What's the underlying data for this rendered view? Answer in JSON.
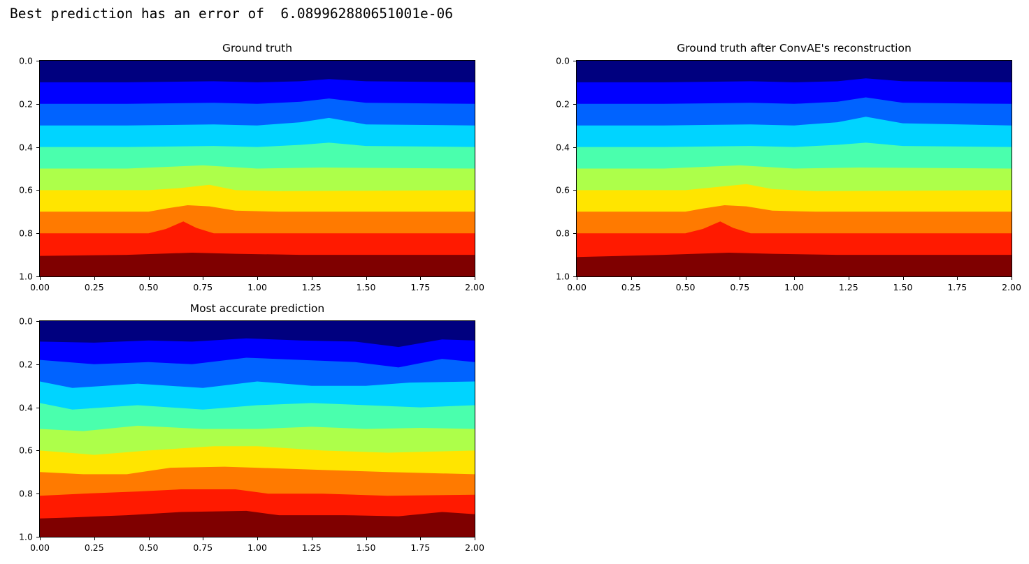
{
  "output_text": "Best prediction has an error of  6.089962880651001e-06",
  "colormap": [
    "#00007f",
    "#0000ff",
    "#0063ff",
    "#00d4ff",
    "#4affad",
    "#adff4a",
    "#ffe500",
    "#ff7a00",
    "#ff1a00",
    "#7f0000"
  ],
  "chart_data": [
    {
      "type": "heatmap",
      "title": "Ground truth",
      "xlim": [
        0,
        2
      ],
      "ylim": [
        0,
        1
      ],
      "xticks": [
        "0.00",
        "0.25",
        "0.50",
        "0.75",
        "1.00",
        "1.25",
        "1.50",
        "1.75",
        "2.00"
      ],
      "yticks": [
        "0.0",
        "0.2",
        "0.4",
        "0.6",
        "0.8",
        "1.0"
      ],
      "boundaries": [
        {
          "x": [
            0,
            0.4,
            0.8,
            1.0,
            1.2,
            1.33,
            1.5,
            2.0
          ],
          "y": [
            0.1,
            0.1,
            0.095,
            0.1,
            0.095,
            0.085,
            0.095,
            0.1
          ]
        },
        {
          "x": [
            0,
            0.4,
            0.8,
            1.0,
            1.2,
            1.33,
            1.5,
            2.0
          ],
          "y": [
            0.2,
            0.2,
            0.195,
            0.2,
            0.19,
            0.175,
            0.195,
            0.2
          ]
        },
        {
          "x": [
            0,
            0.4,
            0.8,
            1.0,
            1.2,
            1.33,
            1.5,
            2.0
          ],
          "y": [
            0.3,
            0.3,
            0.295,
            0.3,
            0.285,
            0.265,
            0.295,
            0.3
          ]
        },
        {
          "x": [
            0,
            0.4,
            0.8,
            1.0,
            1.2,
            1.33,
            1.5,
            2.0
          ],
          "y": [
            0.4,
            0.4,
            0.395,
            0.4,
            0.39,
            0.38,
            0.395,
            0.4
          ]
        },
        {
          "x": [
            0,
            0.4,
            0.75,
            1.0,
            1.3,
            2.0
          ],
          "y": [
            0.5,
            0.5,
            0.485,
            0.5,
            0.495,
            0.5
          ]
        },
        {
          "x": [
            0,
            0.5,
            0.65,
            0.78,
            0.9,
            1.1,
            2.0
          ],
          "y": [
            0.6,
            0.6,
            0.59,
            0.575,
            0.6,
            0.605,
            0.6
          ]
        },
        {
          "x": [
            0,
            0.5,
            0.58,
            0.68,
            0.78,
            0.9,
            1.1,
            2.0
          ],
          "y": [
            0.7,
            0.7,
            0.685,
            0.67,
            0.675,
            0.695,
            0.7,
            0.7
          ]
        },
        {
          "x": [
            0,
            0.5,
            0.58,
            0.66,
            0.72,
            0.8,
            1.0,
            2.0
          ],
          "y": [
            0.8,
            0.8,
            0.78,
            0.745,
            0.775,
            0.8,
            0.8,
            0.8
          ]
        },
        {
          "x": [
            0,
            0.4,
            0.7,
            0.9,
            1.2,
            2.0
          ],
          "y": [
            0.905,
            0.9,
            0.89,
            0.895,
            0.9,
            0.9
          ]
        }
      ]
    },
    {
      "type": "heatmap",
      "title": "Ground truth after ConvAE's reconstruction",
      "xlim": [
        0,
        2
      ],
      "ylim": [
        0,
        1
      ],
      "xticks": [
        "0.00",
        "0.25",
        "0.50",
        "0.75",
        "1.00",
        "1.25",
        "1.50",
        "1.75",
        "2.00"
      ],
      "yticks": [
        "0.0",
        "0.2",
        "0.4",
        "0.6",
        "0.8",
        "1.0"
      ],
      "boundaries": [
        {
          "x": [
            0,
            0.4,
            0.8,
            1.0,
            1.2,
            1.33,
            1.5,
            2.0
          ],
          "y": [
            0.1,
            0.1,
            0.095,
            0.1,
            0.095,
            0.082,
            0.095,
            0.1
          ]
        },
        {
          "x": [
            0,
            0.4,
            0.8,
            1.0,
            1.2,
            1.33,
            1.5,
            2.0
          ],
          "y": [
            0.2,
            0.2,
            0.195,
            0.2,
            0.19,
            0.17,
            0.195,
            0.2
          ]
        },
        {
          "x": [
            0,
            0.4,
            0.8,
            1.0,
            1.2,
            1.33,
            1.5,
            2.0
          ],
          "y": [
            0.3,
            0.3,
            0.295,
            0.3,
            0.285,
            0.26,
            0.29,
            0.3
          ]
        },
        {
          "x": [
            0,
            0.4,
            0.8,
            1.0,
            1.2,
            1.33,
            1.5,
            2.0
          ],
          "y": [
            0.4,
            0.4,
            0.395,
            0.4,
            0.39,
            0.38,
            0.395,
            0.4
          ]
        },
        {
          "x": [
            0,
            0.4,
            0.75,
            1.0,
            1.3,
            2.0
          ],
          "y": [
            0.5,
            0.5,
            0.485,
            0.5,
            0.495,
            0.5
          ]
        },
        {
          "x": [
            0,
            0.5,
            0.65,
            0.78,
            0.9,
            1.1,
            2.0
          ],
          "y": [
            0.6,
            0.6,
            0.585,
            0.572,
            0.595,
            0.605,
            0.6
          ]
        },
        {
          "x": [
            0,
            0.5,
            0.58,
            0.68,
            0.78,
            0.9,
            1.1,
            2.0
          ],
          "y": [
            0.7,
            0.7,
            0.685,
            0.67,
            0.675,
            0.695,
            0.7,
            0.7
          ]
        },
        {
          "x": [
            0,
            0.5,
            0.58,
            0.66,
            0.72,
            0.8,
            1.0,
            2.0
          ],
          "y": [
            0.8,
            0.8,
            0.78,
            0.745,
            0.775,
            0.8,
            0.8,
            0.8
          ]
        },
        {
          "x": [
            0,
            0.4,
            0.7,
            0.9,
            1.2,
            2.0
          ],
          "y": [
            0.91,
            0.9,
            0.89,
            0.895,
            0.9,
            0.9
          ]
        }
      ]
    },
    {
      "type": "heatmap",
      "title": "Most accurate prediction",
      "xlim": [
        0,
        2
      ],
      "ylim": [
        0,
        1
      ],
      "xticks": [
        "0.00",
        "0.25",
        "0.50",
        "0.75",
        "1.00",
        "1.25",
        "1.50",
        "1.75",
        "2.00"
      ],
      "yticks": [
        "0.0",
        "0.2",
        "0.4",
        "0.6",
        "0.8",
        "1.0"
      ],
      "boundaries": [
        {
          "x": [
            0,
            0.25,
            0.5,
            0.7,
            0.95,
            1.2,
            1.45,
            1.65,
            1.85,
            2.0
          ],
          "y": [
            0.095,
            0.1,
            0.09,
            0.095,
            0.08,
            0.09,
            0.095,
            0.12,
            0.085,
            0.09
          ]
        },
        {
          "x": [
            0,
            0.25,
            0.5,
            0.7,
            0.95,
            1.2,
            1.45,
            1.65,
            1.85,
            2.0
          ],
          "y": [
            0.18,
            0.2,
            0.19,
            0.2,
            0.17,
            0.18,
            0.19,
            0.215,
            0.175,
            0.19
          ]
        },
        {
          "x": [
            0,
            0.15,
            0.45,
            0.75,
            1.0,
            1.25,
            1.5,
            1.7,
            2.0
          ],
          "y": [
            0.28,
            0.31,
            0.29,
            0.31,
            0.28,
            0.3,
            0.3,
            0.285,
            0.28
          ]
        },
        {
          "x": [
            0,
            0.15,
            0.45,
            0.75,
            1.0,
            1.25,
            1.5,
            1.75,
            2.0
          ],
          "y": [
            0.38,
            0.41,
            0.39,
            0.41,
            0.39,
            0.38,
            0.39,
            0.4,
            0.39
          ]
        },
        {
          "x": [
            0,
            0.2,
            0.45,
            0.75,
            1.0,
            1.25,
            1.5,
            1.75,
            2.0
          ],
          "y": [
            0.5,
            0.51,
            0.485,
            0.5,
            0.5,
            0.49,
            0.5,
            0.495,
            0.5
          ]
        },
        {
          "x": [
            0,
            0.25,
            0.5,
            0.8,
            1.0,
            1.3,
            1.6,
            2.0
          ],
          "y": [
            0.6,
            0.62,
            0.6,
            0.58,
            0.58,
            0.6,
            0.61,
            0.6
          ]
        },
        {
          "x": [
            0,
            0.2,
            0.4,
            0.6,
            0.85,
            1.0,
            1.3,
            1.6,
            2.0
          ],
          "y": [
            0.7,
            0.71,
            0.71,
            0.68,
            0.675,
            0.68,
            0.69,
            0.7,
            0.71
          ]
        },
        {
          "x": [
            0,
            0.2,
            0.45,
            0.65,
            0.9,
            1.05,
            1.3,
            1.6,
            2.0
          ],
          "y": [
            0.81,
            0.8,
            0.79,
            0.78,
            0.78,
            0.8,
            0.8,
            0.81,
            0.805
          ]
        },
        {
          "x": [
            0,
            0.15,
            0.4,
            0.65,
            0.95,
            1.1,
            1.4,
            1.65,
            1.85,
            2.0
          ],
          "y": [
            0.915,
            0.91,
            0.9,
            0.885,
            0.88,
            0.9,
            0.9,
            0.905,
            0.885,
            0.895
          ]
        }
      ]
    }
  ]
}
